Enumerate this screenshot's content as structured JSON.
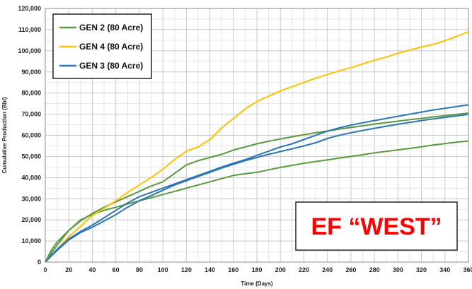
{
  "chart_data": {
    "type": "line",
    "xlabel": "Time (Days)",
    "ylabel": "Cumulative Production (Bbl)",
    "xlim": [
      0,
      360
    ],
    "ylim": [
      0,
      120000
    ],
    "x_ticks": [
      "0",
      "20",
      "40",
      "60",
      "80",
      "100",
      "120",
      "140",
      "160",
      "180",
      "200",
      "220",
      "240",
      "260",
      "280",
      "300",
      "320",
      "340",
      "360"
    ],
    "y_ticks": [
      "0",
      "10,000",
      "20,000",
      "30,000",
      "40,000",
      "50,000",
      "60,000",
      "70,000",
      "80,000",
      "90,000",
      "100,000",
      "110,000",
      "120,000"
    ],
    "grid": true,
    "legend_position": "top-left",
    "annotation": "EF “WEST”",
    "annotation_color": "#ff0000",
    "x": [
      0,
      5,
      10,
      20,
      30,
      40,
      50,
      60,
      70,
      80,
      90,
      100,
      110,
      120,
      130,
      140,
      150,
      160,
      170,
      180,
      190,
      200,
      210,
      220,
      230,
      240,
      250,
      260,
      270,
      280,
      290,
      300,
      310,
      320,
      330,
      340,
      350,
      360
    ],
    "series": [
      {
        "name": "GEN 2  (80 Acre)",
        "color": "#5a9a3f",
        "values": [
          0,
          5500,
          9500,
          15000,
          19500,
          23000,
          26000,
          28500,
          31000,
          33500,
          36000,
          38000,
          42000,
          46000,
          48000,
          49500,
          51000,
          53000,
          54500,
          56000,
          57200,
          58300,
          59300,
          60300,
          61200,
          62000,
          62900,
          63700,
          64500,
          65300,
          66000,
          66700,
          67400,
          68000,
          68700,
          69300,
          69900,
          70500
        ]
      },
      {
        "name": "GEN 2  (80 Acre)",
        "color": "#5a9a3f",
        "values": [
          0,
          4000,
          8000,
          15000,
          20000,
          22500,
          24500,
          26000,
          27500,
          29000,
          30500,
          32000,
          33500,
          35000,
          36500,
          38000,
          39500,
          41000,
          41800,
          42500,
          43700,
          44800,
          45800,
          46800,
          47600,
          48400,
          49200,
          50000,
          50800,
          51700,
          52400,
          53100,
          53800,
          54600,
          55400,
          56100,
          56800,
          57300
        ]
      },
      {
        "name": "GEN 4  (80 Acre)",
        "color": "#ffc000",
        "values": [
          0,
          3000,
          6000,
          12000,
          17000,
          22000,
          25500,
          29000,
          33000,
          36500,
          40000,
          44000,
          48500,
          52500,
          54500,
          58000,
          63500,
          68000,
          72500,
          76000,
          78500,
          81000,
          83000,
          85000,
          87000,
          88800,
          90500,
          92000,
          93800,
          95500,
          97000,
          98800,
          100300,
          101800,
          103000,
          104800,
          106800,
          109000
        ]
      },
      {
        "name": "GEN 3  (80 Acre)",
        "color": "#2e75b6",
        "values": [
          0,
          3000,
          6000,
          11000,
          14500,
          17500,
          21000,
          24500,
          28000,
          31000,
          33000,
          35000,
          37000,
          39000,
          41000,
          43000,
          45000,
          46800,
          48500,
          50500,
          52500,
          54500,
          56000,
          58000,
          60000,
          62000,
          63500,
          64800,
          65900,
          67000,
          68000,
          69000,
          70000,
          71000,
          72000,
          72800,
          73600,
          74400
        ]
      },
      {
        "name": "GEN 3  (80 Acre)",
        "color": "#2e75b6",
        "values": [
          0,
          2800,
          5500,
          10500,
          14000,
          16500,
          19500,
          22500,
          26000,
          29000,
          31500,
          34000,
          36500,
          38500,
          40500,
          42500,
          44500,
          46300,
          48000,
          49500,
          51000,
          52300,
          53600,
          55000,
          56500,
          58500,
          60000,
          61200,
          62300,
          63300,
          64300,
          65200,
          66100,
          67000,
          67800,
          68500,
          69200,
          69900
        ]
      }
    ],
    "legend": [
      {
        "label": "GEN 2  (80 Acre)",
        "color": "#5a9a3f"
      },
      {
        "label": "GEN 4  (80 Acre)",
        "color": "#ffc000"
      },
      {
        "label": "GEN 3  (80 Acre)",
        "color": "#2e75b6"
      }
    ]
  }
}
